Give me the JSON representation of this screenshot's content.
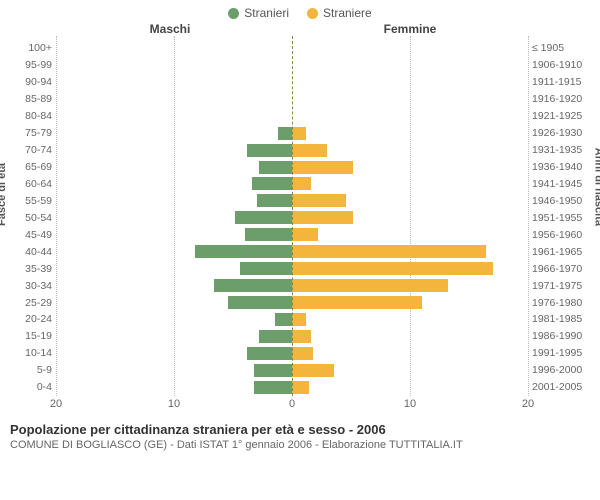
{
  "legend": {
    "male": {
      "label": "Stranieri",
      "color": "#6b9e6b"
    },
    "female": {
      "label": "Straniere",
      "color": "#f2b63c"
    }
  },
  "headers": {
    "left": "Maschi",
    "right": "Femmine"
  },
  "axis_labels": {
    "left": "Fasce di età",
    "right": "Anni di nascita"
  },
  "xaxis": {
    "max": 20,
    "ticks": [
      20,
      10,
      0,
      10,
      20
    ]
  },
  "grid_color": "#bbbbbb",
  "center_line_color": "#888844",
  "background": "#ffffff",
  "rows": [
    {
      "age": "100+",
      "birth": "≤ 1905",
      "m": 0,
      "f": 0
    },
    {
      "age": "95-99",
      "birth": "1906-1910",
      "m": 0,
      "f": 0
    },
    {
      "age": "90-94",
      "birth": "1911-1915",
      "m": 0,
      "f": 0
    },
    {
      "age": "85-89",
      "birth": "1916-1920",
      "m": 0,
      "f": 0
    },
    {
      "age": "80-84",
      "birth": "1921-1925",
      "m": 0,
      "f": 0
    },
    {
      "age": "75-79",
      "birth": "1926-1930",
      "m": 1.2,
      "f": 1.2
    },
    {
      "age": "70-74",
      "birth": "1931-1935",
      "m": 3.8,
      "f": 3.0
    },
    {
      "age": "65-69",
      "birth": "1936-1940",
      "m": 2.8,
      "f": 5.2
    },
    {
      "age": "60-64",
      "birth": "1941-1945",
      "m": 3.4,
      "f": 1.6
    },
    {
      "age": "55-59",
      "birth": "1946-1950",
      "m": 3.0,
      "f": 4.6
    },
    {
      "age": "50-54",
      "birth": "1951-1955",
      "m": 4.8,
      "f": 5.2
    },
    {
      "age": "45-49",
      "birth": "1956-1960",
      "m": 4.0,
      "f": 2.2
    },
    {
      "age": "40-44",
      "birth": "1961-1965",
      "m": 8.2,
      "f": 16.4
    },
    {
      "age": "35-39",
      "birth": "1966-1970",
      "m": 4.4,
      "f": 17.0
    },
    {
      "age": "30-34",
      "birth": "1971-1975",
      "m": 6.6,
      "f": 13.2
    },
    {
      "age": "25-29",
      "birth": "1976-1980",
      "m": 5.4,
      "f": 11.0
    },
    {
      "age": "20-24",
      "birth": "1981-1985",
      "m": 1.4,
      "f": 1.2
    },
    {
      "age": "15-19",
      "birth": "1986-1990",
      "m": 2.8,
      "f": 1.6
    },
    {
      "age": "10-14",
      "birth": "1991-1995",
      "m": 3.8,
      "f": 1.8
    },
    {
      "age": "5-9",
      "birth": "1996-2000",
      "m": 3.2,
      "f": 3.6
    },
    {
      "age": "0-4",
      "birth": "2001-2005",
      "m": 3.2,
      "f": 1.4
    }
  ],
  "caption": {
    "title": "Popolazione per cittadinanza straniera per età e sesso - 2006",
    "subtitle": "COMUNE DI BOGLIASCO (GE) - Dati ISTAT 1° gennaio 2006 - Elaborazione TUTTITALIA.IT"
  }
}
